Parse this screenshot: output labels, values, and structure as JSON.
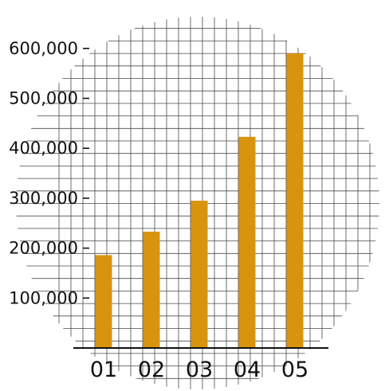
{
  "chart_data": {
    "type": "bar",
    "title": "",
    "xlabel": "",
    "ylabel": "",
    "categories": [
      "01",
      "02",
      "03",
      "04",
      "05"
    ],
    "values": [
      186000,
      233000,
      295000,
      423000,
      590000
    ],
    "ylim": [
      0,
      600000
    ],
    "yticks": [
      {
        "value": 100000,
        "label": "100,000"
      },
      {
        "value": 200000,
        "label": "200,000"
      },
      {
        "value": 300000,
        "label": "300,000"
      },
      {
        "value": 400000,
        "label": "400,000"
      },
      {
        "value": 500000,
        "label": "500,000"
      },
      {
        "value": 600000,
        "label": "600,000"
      }
    ],
    "grid": true,
    "legend": "none",
    "colors": {
      "bar": "#D9940F",
      "grid": "#4a4a4a",
      "axis": "#111111",
      "text": "#111111"
    }
  }
}
